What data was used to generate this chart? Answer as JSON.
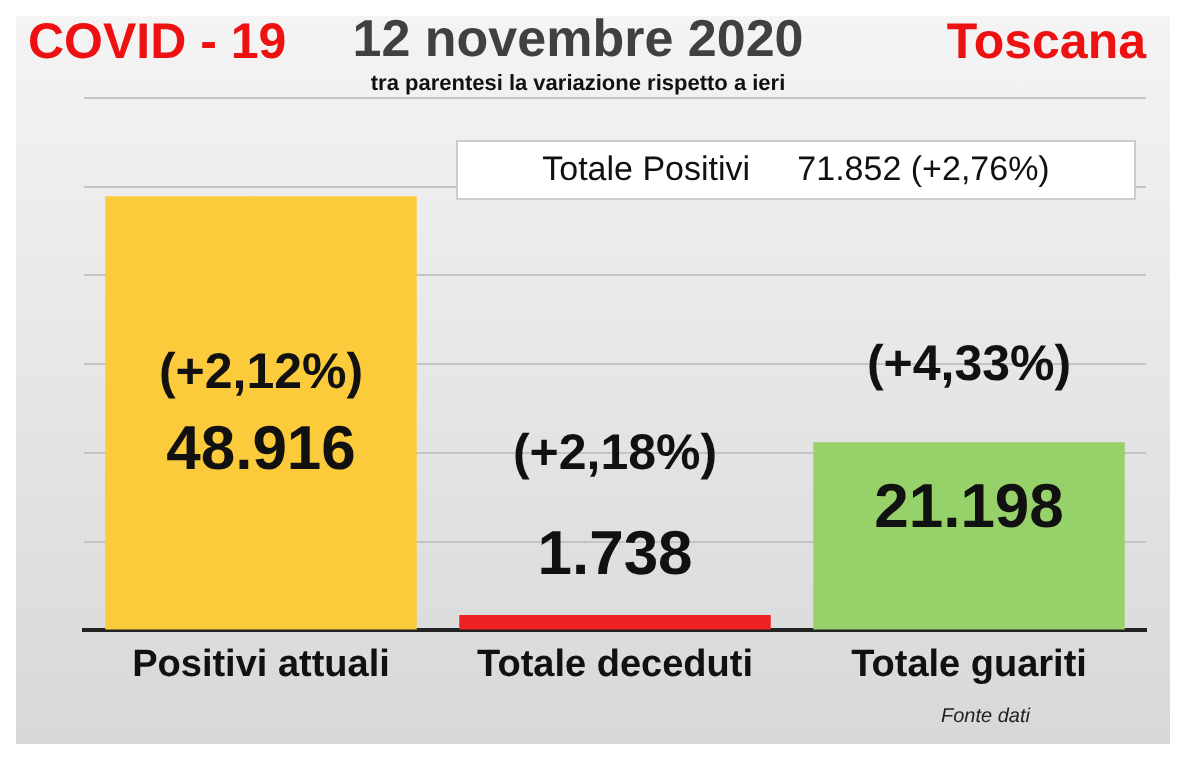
{
  "chart_data": {
    "type": "bar",
    "title": "12 novembre 2020",
    "subtitle": "tra parentesi la variazione rispetto a ieri",
    "categories": [
      "Positivi attuali",
      "Totale deceduti",
      "Totale guariti"
    ],
    "values": [
      48916,
      1738,
      21198
    ],
    "colors": [
      "#fccb3c",
      "#ee2222",
      "#96d16a"
    ],
    "value_labels": [
      "48.916",
      "1.738",
      "21.198"
    ],
    "ylim": [
      0,
      60000
    ],
    "yticks": [
      {
        "value": 0,
        "label": null
      },
      {
        "value": 10000,
        "label": null
      },
      {
        "value": 20000,
        "label": null
      },
      {
        "value": 30000,
        "label": null
      },
      {
        "value": 40000,
        "label": null
      },
      {
        "value": 50000,
        "label": null
      },
      {
        "value": 60000,
        "label": null
      }
    ],
    "tick_labels": "x",
    "grid": "y",
    "legend": false,
    "annotations": [
      "COVID - 19",
      "Toscana",
      "Totale Positivi     71.852 (+2,76%)",
      "Fonte dati",
      "(+2,12%)",
      "(+2,18%)",
      "(+4,33%)"
    ]
  }
}
